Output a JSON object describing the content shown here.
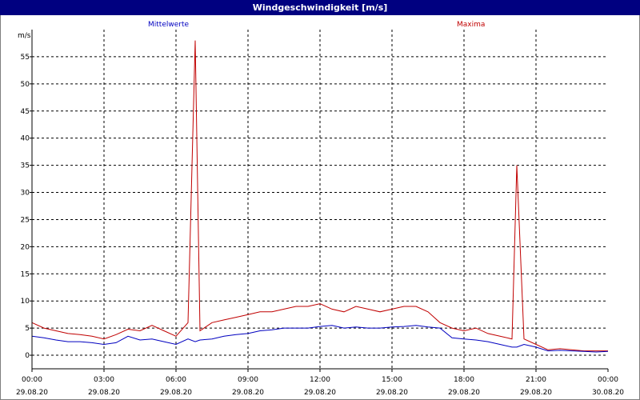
{
  "window": {
    "title": "Windgeschwindigkeit [m/s]"
  },
  "chart_data": {
    "type": "line",
    "title": "Windgeschwindigkeit [m/s]",
    "ylabel": "m/s",
    "ylim": [
      -2.5,
      60
    ],
    "xlim": [
      "29.08.20 00:00",
      "30.08.20 00:00"
    ],
    "grid": true,
    "legend_placement": "top",
    "yticks": [
      0,
      5,
      10,
      15,
      20,
      25,
      30,
      35,
      40,
      45,
      50,
      55
    ],
    "xticks": [
      {
        "time": "00:00",
        "date": "29.08.20"
      },
      {
        "time": "03:00",
        "date": "29.08.20"
      },
      {
        "time": "06:00",
        "date": "29.08.20"
      },
      {
        "time": "09:00",
        "date": "29.08.20"
      },
      {
        "time": "12:00",
        "date": "29.08.20"
      },
      {
        "time": "15:00",
        "date": "29.08.20"
      },
      {
        "time": "18:00",
        "date": "29.08.20"
      },
      {
        "time": "21:00",
        "date": "29.08.20"
      },
      {
        "time": "00:00",
        "date": "30.08.20"
      }
    ],
    "x_hours": [
      0,
      0.5,
      1,
      1.5,
      2,
      2.5,
      3,
      3.5,
      4,
      4.5,
      5,
      5.5,
      6,
      6.5,
      6.8,
      7,
      7.5,
      8,
      8.5,
      9,
      9.5,
      10,
      10.5,
      11,
      11.5,
      12,
      12.5,
      13,
      13.5,
      14,
      14.5,
      15,
      15.5,
      16,
      16.5,
      17,
      17.5,
      18,
      18.5,
      19,
      19.5,
      20,
      20.2,
      20.5,
      21,
      21.5,
      22,
      22.5,
      23,
      23.5,
      24
    ],
    "series": [
      {
        "name": "Mittelwerte",
        "color": "#0000c0",
        "values": [
          3.5,
          3.2,
          2.8,
          2.5,
          2.5,
          2.3,
          2.0,
          2.3,
          3.5,
          2.8,
          3.0,
          2.5,
          2.0,
          3.0,
          2.5,
          2.8,
          3.0,
          3.5,
          3.8,
          4.0,
          4.5,
          4.7,
          5.0,
          5.0,
          5.0,
          5.3,
          5.5,
          5.0,
          5.2,
          5.0,
          5.0,
          5.2,
          5.3,
          5.5,
          5.2,
          5.0,
          3.2,
          3.0,
          2.8,
          2.5,
          2.0,
          1.5,
          1.5,
          2.0,
          1.5,
          0.8,
          0.9,
          0.8,
          0.7,
          0.6,
          0.7
        ]
      },
      {
        "name": "Maxima",
        "color": "#c00000",
        "values": [
          6.0,
          5.0,
          4.5,
          4.0,
          3.8,
          3.5,
          3.0,
          3.8,
          4.8,
          4.5,
          5.5,
          4.5,
          3.5,
          6.0,
          58.0,
          4.5,
          6.0,
          6.5,
          7.0,
          7.5,
          8.0,
          8.0,
          8.5,
          9.0,
          9.0,
          9.5,
          8.5,
          8.0,
          9.0,
          8.5,
          8.0,
          8.5,
          9.0,
          9.0,
          8.0,
          6.0,
          5.0,
          4.5,
          5.0,
          4.0,
          3.5,
          3.0,
          35.0,
          3.0,
          2.0,
          1.0,
          1.2,
          1.0,
          0.8,
          0.8,
          0.8
        ]
      }
    ]
  }
}
